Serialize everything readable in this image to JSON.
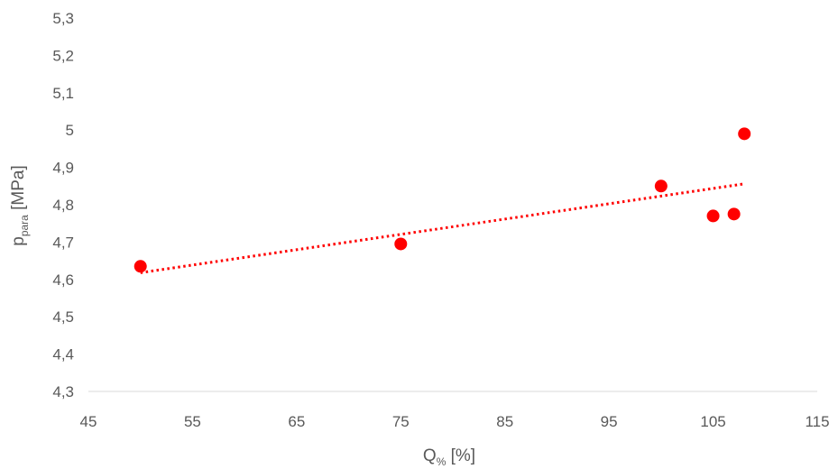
{
  "chart_data": {
    "type": "scatter",
    "title": "",
    "xlabel": {
      "main": "Q",
      "sub": "%",
      "unit": " [%]"
    },
    "ylabel": {
      "main": "p",
      "sub": "para",
      "unit": " [MPa]"
    },
    "xlim": [
      45,
      115
    ],
    "ylim": [
      4.3,
      5.3
    ],
    "x_ticks": [
      "45",
      "55",
      "65",
      "75",
      "85",
      "95",
      "105",
      "115"
    ],
    "y_ticks": [
      "4,3",
      "4,4",
      "4,5",
      "4,6",
      "4,7",
      "4,8",
      "4,9",
      "5",
      "5,1",
      "5,2",
      "5,3"
    ],
    "grid": false,
    "series": [
      {
        "points": [
          {
            "x": 50,
            "y": 4.635
          },
          {
            "x": 75,
            "y": 4.695
          },
          {
            "x": 100,
            "y": 4.85
          },
          {
            "x": 105,
            "y": 4.77
          },
          {
            "x": 107,
            "y": 4.775
          },
          {
            "x": 108,
            "y": 4.99
          }
        ],
        "color": "#ff0000"
      }
    ],
    "trendline": {
      "type": "linear",
      "style": "dotted",
      "color": "#ff0000",
      "x_range": [
        50,
        108
      ],
      "y_values": [
        4.618,
        4.856
      ]
    },
    "axis_color": "#d9d9d9",
    "text_color": "#595959"
  }
}
